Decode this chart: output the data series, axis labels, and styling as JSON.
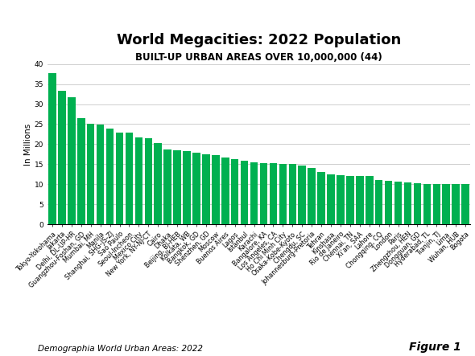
{
  "title": "World Megacities: 2022 Population",
  "subtitle": "BUILT-UP URBAN AREAS OVER 10,000,000 (44)",
  "ylabel": "In Millions",
  "source": "Demographia World Urban Areas: 2022",
  "figure_label": "Figure 1",
  "bar_color": "#00b050",
  "categories": [
    "Tokyo-Yokohama",
    "Jakarta",
    "Delhi, DL-UP-HR",
    "Guangzhou-Foshan, GD",
    "Mumbai, MH",
    "Manila",
    "Shanghai, SHG-JS-ZJ",
    "Sao Paulo",
    "Seoul-Incheon",
    "Mexico City",
    "New York, NY-NJ-CT",
    "Cairo",
    "Dhaka",
    "Beijing, BJ-HEB",
    "Kolkata, WB",
    "Bangkok, GD",
    "Shenzhen, GD",
    "Moscow",
    "Buenos Aires",
    "Lagos",
    "Istanbul",
    "Karachi",
    "Bangalore, KA",
    "Los Angeles, CA",
    "Ho Chi Minh City",
    "Osaka-Kobe-Kyoto",
    "Chengdu, SC",
    "Johannesburg-Pretoria",
    "Tehran",
    "Kinshasa",
    "Rio de Janeiro",
    "Chennai, TN",
    "Xi'an, SAA",
    "Lahore",
    "Chongqing, CQ",
    "London",
    "Paris",
    "Zhengzhou, HEN",
    "Dongguan, GD",
    "Hyderabad, TL",
    "Tianjin, TJ",
    "Lima",
    "Wuhan, HUB",
    "Bogota"
  ],
  "values": [
    37.7,
    33.4,
    31.8,
    26.6,
    25.0,
    24.9,
    23.8,
    22.9,
    22.9,
    21.6,
    21.5,
    20.2,
    18.6,
    18.5,
    18.2,
    17.9,
    17.5,
    17.2,
    16.7,
    16.3,
    15.9,
    15.4,
    15.2,
    15.2,
    15.1,
    15.0,
    14.7,
    14.1,
    13.0,
    12.4,
    12.2,
    12.1,
    12.0,
    12.0,
    11.1,
    10.9,
    10.6,
    10.4,
    10.2,
    10.1,
    10.1,
    10.0,
    10.0,
    10.0
  ],
  "ylim": [
    0,
    40
  ],
  "yticks": [
    0,
    5,
    10,
    15,
    20,
    25,
    30,
    35,
    40
  ],
  "background_color": "#ffffff",
  "grid_color": "#bbbbbb",
  "title_fontsize": 13,
  "subtitle_fontsize": 8.5,
  "ylabel_fontsize": 7.5,
  "tick_fontsize": 6.5,
  "xtick_fontsize": 5.8,
  "source_fontsize": 7.5,
  "figure_label_fontsize": 10
}
